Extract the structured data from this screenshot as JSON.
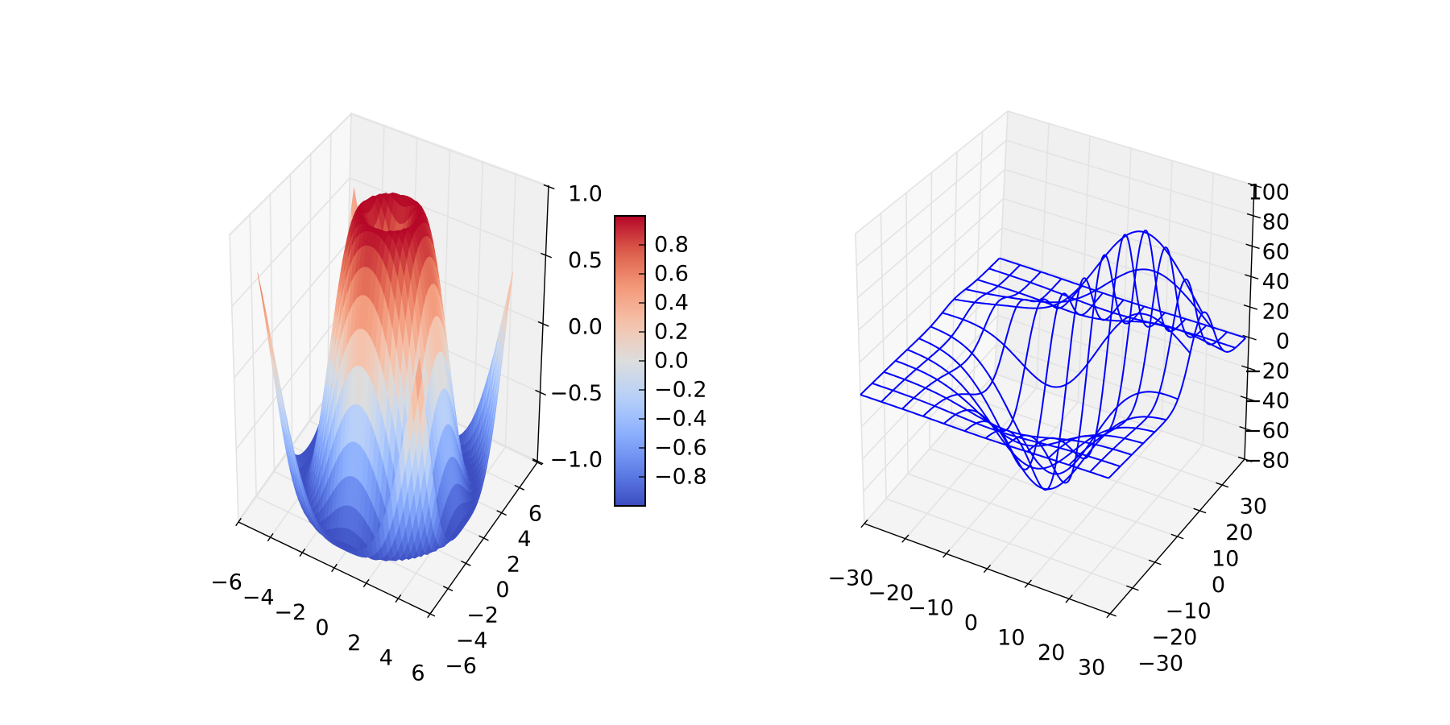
{
  "chart_data": [
    {
      "type": "surface",
      "title": "",
      "xlabel": "",
      "ylabel": "",
      "zlabel": "",
      "z_function": "sin(sqrt(x^2 + y^2))",
      "grid": {
        "start": -5,
        "stop": 5,
        "step": 0.25
      },
      "xlim": [
        -6,
        6
      ],
      "ylim": [
        -6,
        6
      ],
      "zlim": [
        -1.01,
        1.01
      ],
      "xticks": [
        -6,
        -4,
        -2,
        0,
        2,
        4,
        6
      ],
      "xtick_labels": [
        "−6",
        "−4",
        "−2",
        "0",
        "2",
        "4",
        "6"
      ],
      "yticks": [
        -6,
        -4,
        -2,
        0,
        2,
        4,
        6
      ],
      "ytick_labels": [
        "−6",
        "−4",
        "−2",
        "0",
        "2",
        "4",
        "6"
      ],
      "zticks": [
        -1.0,
        -0.5,
        0.0,
        0.5,
        1.0
      ],
      "ztick_labels": [
        "−1.0",
        "−0.5",
        "0.0",
        "0.5",
        "1.0"
      ],
      "colormap": "coolwarm",
      "colorbar": {
        "range": [
          -1.0,
          1.0
        ],
        "ticks": [
          -0.8,
          -0.6,
          -0.4,
          -0.2,
          0.0,
          0.2,
          0.4,
          0.6,
          0.8
        ],
        "tick_labels": [
          "−0.8",
          "−0.6",
          "−0.4",
          "−0.2",
          "0.0",
          "0.2",
          "0.4",
          "0.6",
          "0.8"
        ]
      },
      "grid_on": true
    },
    {
      "type": "wireframe",
      "title": "",
      "xlabel": "",
      "ylabel": "",
      "zlabel": "",
      "z_function": "500*(exp(-(((x/10-1)/1.5)^2+((y/10-1)/0.5)^2)/2)/(2*pi*0.75) - exp(-((x/10)^2+(y/10)^2)/2)/(2*pi))",
      "grid": {
        "start": -30,
        "stop": 30,
        "step": 0.5,
        "stride": 10
      },
      "line_color": "#0000ff",
      "xlim": [
        -30,
        30
      ],
      "ylim": [
        -30,
        30
      ],
      "zlim": [
        -80,
        100
      ],
      "xticks": [
        -30,
        -20,
        -10,
        0,
        10,
        20,
        30
      ],
      "xtick_labels": [
        "−30",
        "−20",
        "−10",
        "0",
        "10",
        "20",
        "30"
      ],
      "yticks": [
        -30,
        -20,
        -10,
        0,
        10,
        20,
        30
      ],
      "ytick_labels": [
        "−30",
        "−20",
        "−10",
        "0",
        "10",
        "20",
        "30"
      ],
      "zticks": [
        -80,
        -60,
        -40,
        -20,
        0,
        20,
        40,
        60,
        80,
        100
      ],
      "ztick_labels": [
        "−80",
        "−60",
        "−40",
        "−20",
        "0",
        "20",
        "40",
        "60",
        "80",
        "100"
      ],
      "grid_on": true
    }
  ]
}
